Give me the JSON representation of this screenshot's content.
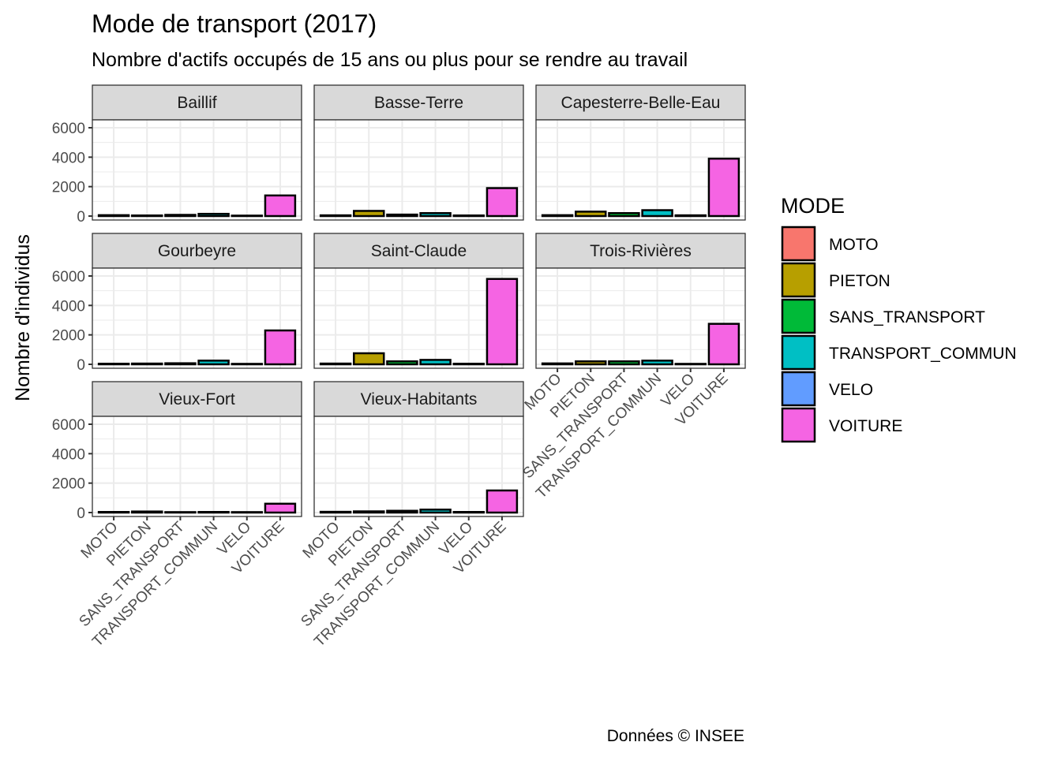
{
  "chart_data": {
    "type": "bar",
    "title": "Mode de transport (2017)",
    "subtitle": "Nombre d'actifs occupés de 15 ans ou plus pour se rendre au travail",
    "xlabel": "",
    "ylabel": "Nombre d'individus",
    "caption": "Données © INSEE",
    "ylim": [
      0,
      6000
    ],
    "yticks": [
      0,
      2000,
      4000,
      6000
    ],
    "ytick_labels": [
      "0",
      "2000",
      "4000",
      "6000"
    ],
    "grid": true,
    "categories": [
      "MOTO",
      "PIETON",
      "SANS_TRANSPORT",
      "TRANSPORT_COMMUN",
      "VELO",
      "VOITURE"
    ],
    "legend": {
      "title": "MODE",
      "position": "right",
      "entries": [
        {
          "label": "MOTO",
          "color": "#F8766D"
        },
        {
          "label": "PIETON",
          "color": "#B79F00"
        },
        {
          "label": "SANS_TRANSPORT",
          "color": "#00BA38"
        },
        {
          "label": "TRANSPORT_COMMUN",
          "color": "#00BFC4"
        },
        {
          "label": "VELO",
          "color": "#619CFF"
        },
        {
          "label": "VOITURE",
          "color": "#F564E3"
        }
      ]
    },
    "facets": [
      {
        "name": "Baillif",
        "values": [
          60,
          40,
          80,
          150,
          30,
          1400
        ]
      },
      {
        "name": "Basse-Terre",
        "values": [
          50,
          350,
          100,
          200,
          40,
          1900
        ]
      },
      {
        "name": "Capesterre-Belle-Eau",
        "values": [
          60,
          300,
          200,
          400,
          50,
          3900
        ]
      },
      {
        "name": "Gourbeyre",
        "values": [
          40,
          50,
          70,
          250,
          30,
          2300
        ]
      },
      {
        "name": "Saint-Claude",
        "values": [
          50,
          750,
          200,
          300,
          40,
          5800
        ]
      },
      {
        "name": "Trois-Rivières",
        "values": [
          60,
          200,
          200,
          250,
          30,
          2750
        ]
      },
      {
        "name": "Vieux-Fort",
        "values": [
          40,
          70,
          30,
          40,
          30,
          600
        ]
      },
      {
        "name": "Vieux-Habitants",
        "values": [
          50,
          80,
          120,
          200,
          40,
          1500
        ]
      }
    ]
  }
}
